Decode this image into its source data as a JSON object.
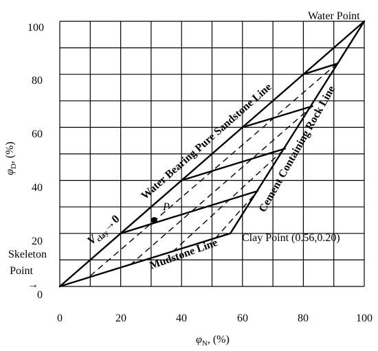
{
  "chart_data": {
    "type": "line",
    "xlabel": {
      "sym": "φ",
      "sub": "N",
      "unit": ", (%)"
    },
    "ylabel": {
      "sym": "φ",
      "sub": "D",
      "unit": ", (%)"
    },
    "xlim": [
      0,
      100
    ],
    "ylim": [
      0,
      100
    ],
    "grid": true,
    "x_ticks": [
      "0",
      "20",
      "40",
      "60",
      "80",
      "100"
    ],
    "y_ticks": [
      "20",
      "40",
      "60",
      "80",
      "100"
    ],
    "y_zero_label": "0",
    "series": [
      {
        "name": "Water Bearing Pure Sandstone Line",
        "style": "solid",
        "points": [
          [
            0,
            0
          ],
          [
            100,
            100
          ]
        ]
      },
      {
        "name": "Mudstone Line",
        "style": "solid",
        "points": [
          [
            0,
            0
          ],
          [
            56,
            20
          ]
        ]
      },
      {
        "name": "Cement Containing Rock Line",
        "style": "solid",
        "points": [
          [
            56,
            20
          ],
          [
            100,
            100
          ]
        ]
      },
      {
        "name": "",
        "style": "solid",
        "points": [
          [
            20,
            20
          ],
          [
            65,
            36
          ]
        ]
      },
      {
        "name": "",
        "style": "solid",
        "points": [
          [
            40,
            40
          ],
          [
            74,
            52
          ]
        ]
      },
      {
        "name": "",
        "style": "solid",
        "points": [
          [
            60,
            60
          ],
          [
            83,
            68
          ]
        ]
      },
      {
        "name": "",
        "style": "solid",
        "points": [
          [
            80,
            80
          ],
          [
            91,
            84
          ]
        ]
      },
      {
        "name": "",
        "style": "dashed",
        "points": [
          [
            10,
            4
          ],
          [
            91,
            84
          ]
        ]
      },
      {
        "name": "",
        "style": "dashed",
        "points": [
          [
            23,
            8
          ],
          [
            83,
            68
          ]
        ]
      },
      {
        "name": "",
        "style": "dashed",
        "points": [
          [
            37,
            13
          ],
          [
            74,
            52
          ]
        ]
      },
      {
        "name": "",
        "style": "dashed",
        "points": [
          [
            51,
            18
          ],
          [
            65,
            36
          ]
        ]
      }
    ],
    "points": [
      {
        "name": "P",
        "x": 31,
        "y": 25
      }
    ],
    "annotations": {
      "water_point": "Water Point",
      "clay_point": "Clay Point (0.56,0.20)",
      "skeleton_line1": "Skeleton",
      "skeleton_line2": "Point",
      "skeleton_arrow": "→",
      "sandstone_line": "Water Bearing Pure Sandstone Line",
      "mudstone_line": "Mudstone Line",
      "cement_line": "Cement Containing Rock Line",
      "p_label": "P",
      "vclay_v": "V",
      "vclay_sub": "clay",
      "vclay_arrow": "→0"
    }
  }
}
